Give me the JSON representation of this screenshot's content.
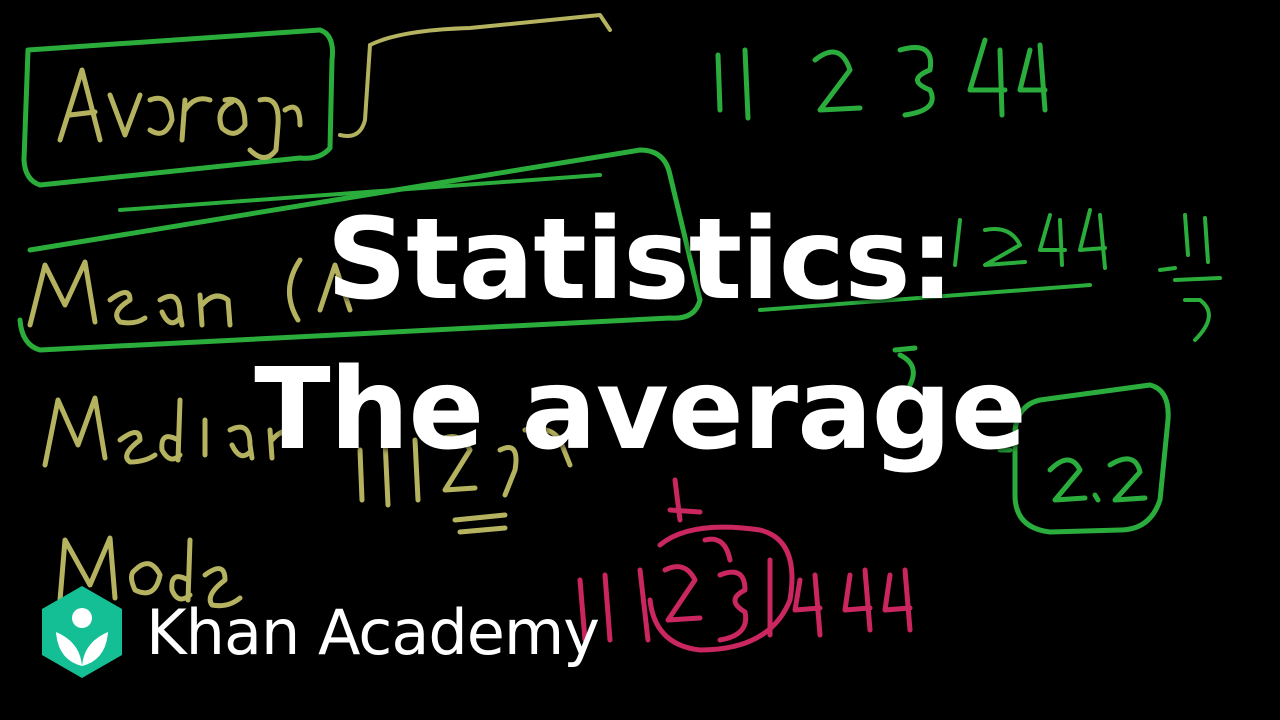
{
  "video": {
    "title_line1": "Statistics:",
    "title_line2": "The average"
  },
  "brand": {
    "name": "Khan Academy",
    "logo_icon": "khan-academy-hexagon-leaf",
    "logo_color": "#14bf96"
  },
  "chalk": {
    "colors": {
      "green": "#2fc042",
      "yellow": "#c9c66a",
      "pink": "#e02a6a"
    }
  }
}
